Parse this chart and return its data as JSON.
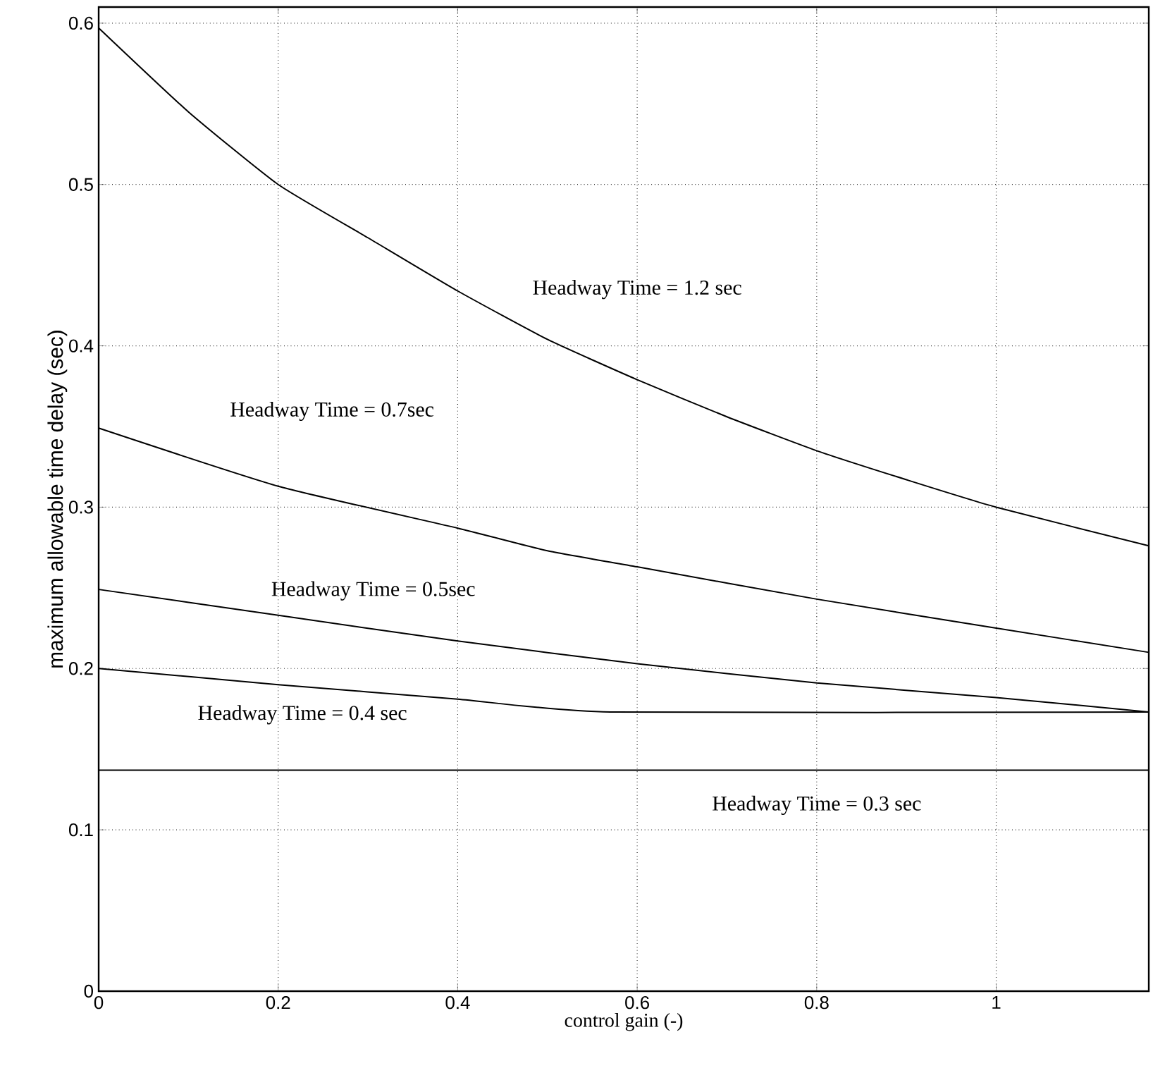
{
  "chart_data": {
    "type": "line",
    "xlabel": "control gain (-)",
    "ylabel": "maximum allowable time delay (sec)",
    "xlim": [
      0,
      1.17
    ],
    "ylim": [
      0,
      0.61
    ],
    "xticks": [
      0,
      0.2,
      0.4,
      0.6,
      0.8,
      1
    ],
    "yticks": [
      0,
      0.1,
      0.2,
      0.3,
      0.4,
      0.5,
      0.6
    ],
    "grid": true,
    "legend": false,
    "marker": "none",
    "line_style": "solid",
    "series": [
      {
        "name": "Headway Time = 1.2 sec",
        "color": "#000000",
        "x": [
          0,
          0.1,
          0.2,
          0.3,
          0.4,
          0.5,
          0.6,
          0.7,
          0.8,
          0.9,
          1.0,
          1.17
        ],
        "values": [
          0.597,
          0.545,
          0.5,
          0.467,
          0.434,
          0.404,
          0.379,
          0.356,
          0.335,
          0.317,
          0.3,
          0.276
        ]
      },
      {
        "name": "Headway Time = 0.7sec",
        "color": "#000000",
        "x": [
          0,
          0.2,
          0.4,
          0.5,
          0.6,
          0.8,
          1.0,
          1.17
        ],
        "values": [
          0.349,
          0.313,
          0.287,
          0.273,
          0.263,
          0.243,
          0.225,
          0.21
        ]
      },
      {
        "name": "Headway Time = 0.5sec",
        "color": "#000000",
        "x": [
          0,
          0.2,
          0.4,
          0.6,
          0.8,
          1.0,
          1.17
        ],
        "values": [
          0.249,
          0.233,
          0.217,
          0.203,
          0.191,
          0.182,
          0.173
        ]
      },
      {
        "name": "Headway Time = 0.4 sec",
        "color": "#000000",
        "x": [
          0,
          0.2,
          0.4,
          0.57,
          1.17
        ],
        "values": [
          0.2,
          0.19,
          0.181,
          0.173,
          0.173
        ]
      },
      {
        "name": "Headway Time = 0.3 sec",
        "color": "#000000",
        "x": [
          0,
          1.17
        ],
        "values": [
          0.137,
          0.137
        ]
      }
    ]
  }
}
